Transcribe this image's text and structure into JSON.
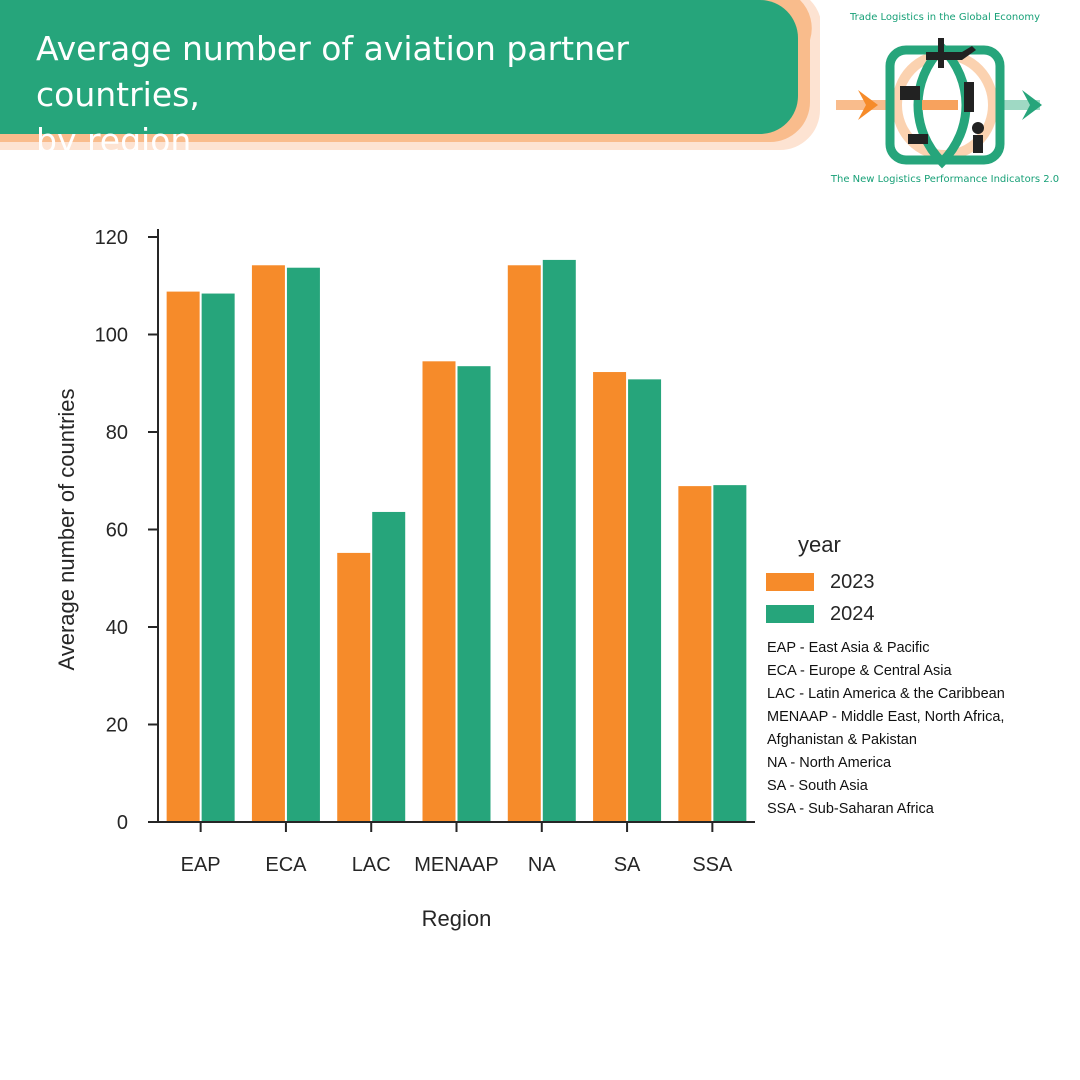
{
  "header": {
    "title": "Average number of aviation partner countries,\nby region"
  },
  "logo": {
    "top_text": "Trade Logistics in the Global Economy",
    "bottom_text": "The New Logistics Performance Indicators 2.0"
  },
  "colors": {
    "green": "#26a57b",
    "orange": "#f68b2a",
    "peach": "#f9bc8c",
    "light_peach": "#fde3d2"
  },
  "chart_data": {
    "type": "bar",
    "title": "Average number of aviation partner countries, by region",
    "xlabel": "Region",
    "ylabel": "Average number of countries",
    "categories": [
      "EAP",
      "ECA",
      "LAC",
      "MENAAP",
      "NA",
      "SA",
      "SSA"
    ],
    "series": [
      {
        "name": "2023",
        "color": "#f68b2a",
        "values": [
          108.8,
          114.2,
          55.2,
          94.5,
          114.2,
          92.3,
          68.9
        ]
      },
      {
        "name": "2024",
        "color": "#26a57b",
        "values": [
          108.4,
          113.7,
          63.6,
          93.5,
          115.3,
          90.8,
          69.1
        ]
      }
    ],
    "ylim": [
      0,
      120
    ],
    "yticks": [
      0,
      20,
      40,
      60,
      80,
      100,
      120
    ],
    "grid": false,
    "legend_title": "year",
    "legend_position": "right"
  },
  "legend": {
    "title": "year",
    "items": [
      {
        "label": "2023",
        "color": "#f68b2a"
      },
      {
        "label": "2024",
        "color": "#26a57b"
      }
    ]
  },
  "abbreviations": [
    "EAP - East Asia & Pacific",
    "ECA - Europe & Central Asia",
    "LAC - Latin America & the Caribbean",
    "MENAAP - Middle East, North Africa,",
    "Afghanistan & Pakistan",
    "NA - North America",
    "SA - South Asia",
    "SSA - Sub-Saharan Africa"
  ]
}
